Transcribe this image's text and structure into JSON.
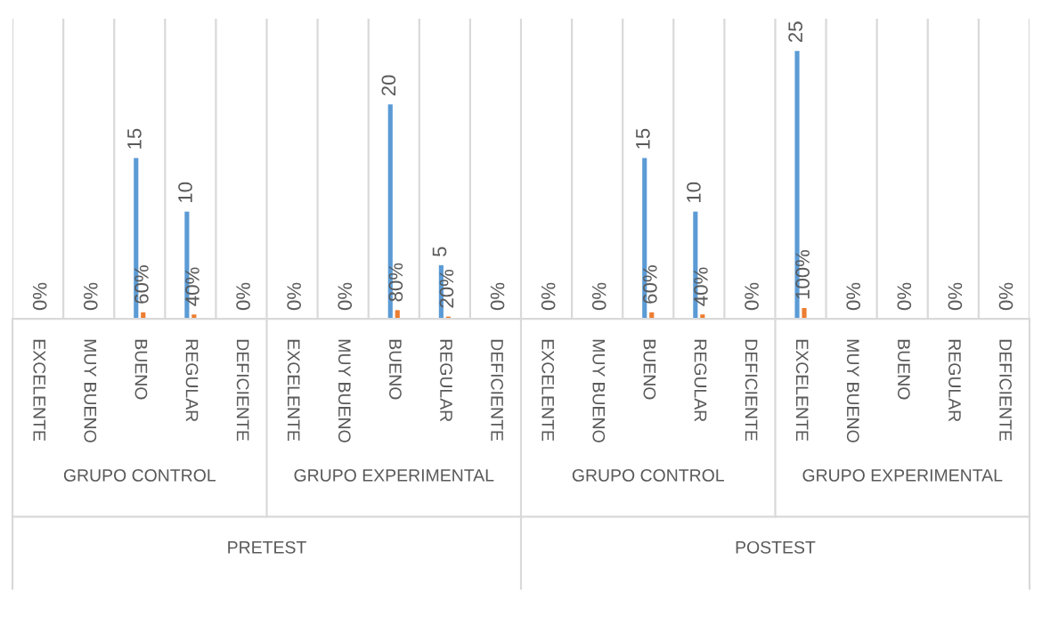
{
  "chart_data": {
    "type": "bar",
    "categories": [
      "EXCELENTE",
      "MUY BUENO",
      "BUENO",
      "REGULAR",
      "DEFICIENTE",
      "EXCELENTE",
      "MUY BUENO",
      "BUENO",
      "REGULAR",
      "DEFICIENTE",
      "EXCELENTE",
      "MUY BUENO",
      "BUENO",
      "REGULAR",
      "DEFICIENTE",
      "EXCELENTE",
      "MUY BUENO",
      "BUENO",
      "REGULAR",
      "DEFICIENTE"
    ],
    "series": [
      {
        "color": "#5b9bd5",
        "values": [
          0,
          0,
          15,
          10,
          0,
          0,
          0,
          20,
          5,
          0,
          0,
          0,
          15,
          10,
          0,
          25,
          0,
          0,
          0,
          0
        ],
        "value_labels": [
          null,
          null,
          "15",
          "10",
          null,
          null,
          null,
          "20",
          "5",
          null,
          null,
          null,
          "15",
          "10",
          null,
          "25",
          null,
          null,
          null,
          null
        ]
      },
      {
        "color": "#ed7d31",
        "values": [
          0,
          0,
          0.6,
          0.4,
          0,
          0,
          0,
          0.8,
          0.2,
          0,
          0,
          0,
          0.6,
          0.4,
          0,
          1,
          0,
          0,
          0,
          0
        ],
        "value_labels": [
          "0%",
          "0%",
          "60%",
          "40%",
          "0%",
          "0%",
          "0%",
          "80%",
          "20%",
          "0%",
          "0%",
          "0%",
          "60%",
          "40%",
          "0%",
          "100%",
          "0%",
          "0%",
          "0%",
          "0%"
        ]
      }
    ],
    "annotations": [
      "GRUPO CONTROL",
      "GRUPO EXPERIMENTAL",
      "GRUPO CONTROL",
      "GRUPO EXPERIMENTAL",
      "PRETEST",
      "POSTEST"
    ],
    "grid": "x",
    "tick_labels": "x",
    "legend": false
  }
}
